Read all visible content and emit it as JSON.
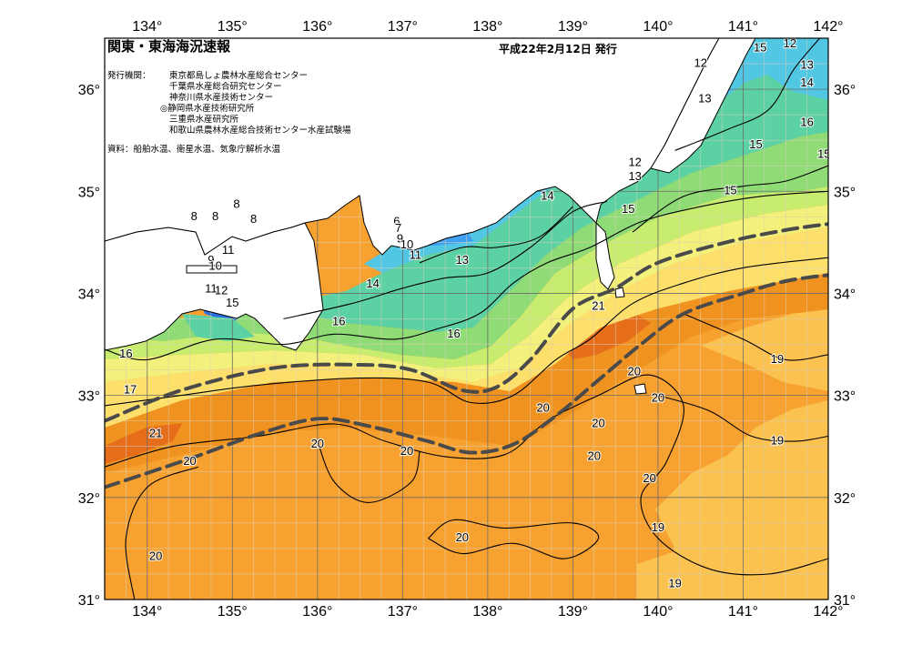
{
  "header": {
    "title": "関東・東海海況速報",
    "issue_date": "平成22年2月12日 発行",
    "agencies_label": "発行機関：",
    "agencies": [
      "東京都島しょ農林水産総合センター",
      "千葉県水産総合研究センター",
      "神奈川県水産技術センター",
      "◎静岡県水産技術研究所",
      "三重県水産研究所",
      "和歌山県農林水産総合技術センター水産試験場"
    ],
    "source": "資料：船舶水温、衛星水温、気象庁解析水温"
  },
  "axes": {
    "lon_min": 133.5,
    "lon_max": 142,
    "lat_min": 31,
    "lat_max": 36.5,
    "lon_ticks": [
      {
        "value": 134,
        "label": "134°"
      },
      {
        "value": 135,
        "label": "135°"
      },
      {
        "value": 136,
        "label": "136°"
      },
      {
        "value": 137,
        "label": "137°"
      },
      {
        "value": 138,
        "label": "138°"
      },
      {
        "value": 139,
        "label": "139°"
      },
      {
        "value": 140,
        "label": "140°"
      },
      {
        "value": 141,
        "label": "141°"
      },
      {
        "value": 142,
        "label": "142°"
      }
    ],
    "lat_ticks": [
      {
        "value": 36,
        "label": "36°"
      },
      {
        "value": 35,
        "label": "35°"
      },
      {
        "value": 34,
        "label": "34°"
      },
      {
        "value": 33,
        "label": "33°"
      },
      {
        "value": 32,
        "label": "32°"
      },
      {
        "value": 31,
        "label": "31°"
      }
    ],
    "grid": true,
    "minor_grid_step_deg": 0.25
  },
  "colors": {
    "sst_19_20": "#f7a230",
    "sst_20_21": "#f0921f",
    "sst_21_plus": "#e66d1a",
    "sst_18_19": "#fbc24f",
    "sst_17_18": "#fde06c",
    "sst_16_17": "#f3f07c",
    "sst_15_16": "#c8ec6e",
    "sst_14_15": "#8fdc76",
    "sst_13_14": "#5cd1a3",
    "sst_12_13": "#52c7e3",
    "sst_11_12": "#3f9ff0",
    "sst_10_11": "#2a70e2",
    "sst_9_10": "#1e4fd3",
    "sst_8_9": "#3565c8",
    "land": "#ffffff",
    "kuroshio_line": "#4a4a4a",
    "grid_line": "#d9d0b8"
  },
  "kuroshio": {
    "path1": [
      [
        133.5,
        32.75
      ],
      [
        134.4,
        33.05
      ],
      [
        135.5,
        33.27
      ],
      [
        136.5,
        33.3
      ],
      [
        137.1,
        33.25
      ],
      [
        137.7,
        33.05
      ],
      [
        138.1,
        33.08
      ],
      [
        138.5,
        33.35
      ],
      [
        139.0,
        33.85
      ],
      [
        139.5,
        34.05
      ],
      [
        140.0,
        34.3
      ],
      [
        140.8,
        34.5
      ],
      [
        141.5,
        34.62
      ],
      [
        142.0,
        34.68
      ]
    ],
    "path2": [
      [
        133.5,
        32.1
      ],
      [
        134.5,
        32.38
      ],
      [
        135.3,
        32.62
      ],
      [
        136.0,
        32.77
      ],
      [
        136.6,
        32.7
      ],
      [
        137.3,
        32.55
      ],
      [
        137.8,
        32.44
      ],
      [
        138.3,
        32.52
      ],
      [
        138.8,
        32.8
      ],
      [
        139.3,
        33.15
      ],
      [
        139.8,
        33.5
      ],
      [
        140.3,
        33.8
      ],
      [
        141.0,
        34.0
      ],
      [
        141.5,
        34.12
      ],
      [
        142.0,
        34.18
      ]
    ]
  },
  "contours": [
    {
      "label": "21",
      "points": [
        [
          133.5,
          32.9
        ],
        [
          134.4,
          33.0
        ],
        [
          135.3,
          33.1
        ],
        [
          136.5,
          33.17
        ],
        [
          137.3,
          33.13
        ],
        [
          137.8,
          32.93
        ],
        [
          138.3,
          33.0
        ],
        [
          138.8,
          33.35
        ],
        [
          139.2,
          33.55
        ],
        [
          139.7,
          33.9
        ],
        [
          140.3,
          34.1
        ],
        [
          141.0,
          34.25
        ],
        [
          142.0,
          34.35
        ]
      ]
    },
    {
      "label": "20",
      "points": [
        [
          133.5,
          32.3
        ],
        [
          134.3,
          32.5
        ],
        [
          135.3,
          32.6
        ],
        [
          136.2,
          32.72
        ],
        [
          136.8,
          32.55
        ],
        [
          137.5,
          32.4
        ],
        [
          138.2,
          32.42
        ],
        [
          138.7,
          32.75
        ],
        [
          139.3,
          33.0
        ],
        [
          139.9,
          33.2
        ],
        [
          140.3,
          32.9
        ],
        [
          140.1,
          32.35
        ],
        [
          139.8,
          32.0
        ],
        [
          140.0,
          31.6
        ],
        [
          140.6,
          31.3
        ],
        [
          141.3,
          31.25
        ],
        [
          142.0,
          31.4
        ]
      ]
    },
    {
      "label": "20",
      "points": [
        [
          133.85,
          31.0
        ],
        [
          133.75,
          31.6
        ],
        [
          134.0,
          32.1
        ],
        [
          134.6,
          32.3
        ]
      ]
    },
    {
      "label": "20",
      "points": [
        [
          137.3,
          31.6
        ],
        [
          137.7,
          31.45
        ],
        [
          138.3,
          31.55
        ],
        [
          138.9,
          31.4
        ],
        [
          139.3,
          31.6
        ],
        [
          139.0,
          31.75
        ],
        [
          138.2,
          31.7
        ],
        [
          137.6,
          31.78
        ],
        [
          137.3,
          31.6
        ]
      ]
    },
    {
      "label": "20",
      "points": [
        [
          136.0,
          32.55
        ],
        [
          136.2,
          32.15
        ],
        [
          136.6,
          31.95
        ],
        [
          137.1,
          32.15
        ],
        [
          137.2,
          32.45
        ]
      ]
    },
    {
      "label": "19",
      "points": [
        [
          140.0,
          33.0
        ],
        [
          140.6,
          32.85
        ],
        [
          141.1,
          32.6
        ],
        [
          141.6,
          32.55
        ],
        [
          142.0,
          32.6
        ]
      ]
    },
    {
      "label": "19",
      "points": [
        [
          140.3,
          33.8
        ],
        [
          141.0,
          33.55
        ],
        [
          141.5,
          33.35
        ],
        [
          142.0,
          33.4
        ]
      ]
    },
    {
      "label": "16",
      "points": [
        [
          133.5,
          33.45
        ],
        [
          134.0,
          33.35
        ],
        [
          134.8,
          33.55
        ],
        [
          135.6,
          33.5
        ],
        [
          136.2,
          33.6
        ],
        [
          136.9,
          33.55
        ],
        [
          137.4,
          33.65
        ],
        [
          137.9,
          33.8
        ],
        [
          138.3,
          34.1
        ],
        [
          138.7,
          34.3
        ],
        [
          139.2,
          34.45
        ],
        [
          139.8,
          34.7
        ],
        [
          140.5,
          34.85
        ],
        [
          141.2,
          34.95
        ],
        [
          142.0,
          35.0
        ]
      ]
    },
    {
      "label": "15",
      "points": [
        [
          139.7,
          34.6
        ],
        [
          140.3,
          34.95
        ],
        [
          141.0,
          35.05
        ],
        [
          141.5,
          35.1
        ],
        [
          142.0,
          35.25
        ]
      ]
    },
    {
      "label": "14",
      "points": [
        [
          135.6,
          33.75
        ],
        [
          136.4,
          33.9
        ],
        [
          137.0,
          34.05
        ],
        [
          137.5,
          34.15
        ],
        [
          138.0,
          34.2
        ],
        [
          138.5,
          34.45
        ],
        [
          139.0,
          34.8
        ],
        [
          139.4,
          34.9
        ]
      ]
    },
    {
      "label": "13",
      "points": [
        [
          137.2,
          34.3
        ],
        [
          137.7,
          34.45
        ],
        [
          138.1,
          34.45
        ],
        [
          138.6,
          34.55
        ],
        [
          139.0,
          34.85
        ]
      ]
    },
    {
      "label": "15",
      "points": [
        [
          140.2,
          35.4
        ],
        [
          140.8,
          35.6
        ],
        [
          141.3,
          35.8
        ],
        [
          141.6,
          36.2
        ],
        [
          141.9,
          36.5
        ]
      ]
    }
  ],
  "labels": [
    {
      "text": "8",
      "lon": 134.55,
      "lat": 34.75
    },
    {
      "text": "8",
      "lon": 134.8,
      "lat": 34.75
    },
    {
      "text": "8",
      "lon": 135.05,
      "lat": 34.87
    },
    {
      "text": "8",
      "lon": 135.25,
      "lat": 34.72
    },
    {
      "text": "11",
      "lon": 134.95,
      "lat": 34.42
    },
    {
      "text": "9",
      "lon": 134.75,
      "lat": 34.32
    },
    {
      "text": "10",
      "lon": 134.8,
      "lat": 34.26
    },
    {
      "text": "11",
      "lon": 134.75,
      "lat": 34.04
    },
    {
      "text": "12",
      "lon": 134.87,
      "lat": 34.02
    },
    {
      "text": "15",
      "lon": 135.0,
      "lat": 33.9
    },
    {
      "text": "6",
      "lon": 136.93,
      "lat": 34.7
    },
    {
      "text": "7",
      "lon": 136.95,
      "lat": 34.63
    },
    {
      "text": "9",
      "lon": 136.97,
      "lat": 34.53
    },
    {
      "text": "10",
      "lon": 137.05,
      "lat": 34.47
    },
    {
      "text": "11",
      "lon": 137.15,
      "lat": 34.37
    },
    {
      "text": "13",
      "lon": 137.7,
      "lat": 34.32
    },
    {
      "text": "14",
      "lon": 136.65,
      "lat": 34.09
    },
    {
      "text": "16",
      "lon": 136.25,
      "lat": 33.72
    },
    {
      "text": "16",
      "lon": 137.6,
      "lat": 33.6
    },
    {
      "text": "14",
      "lon": 138.7,
      "lat": 34.95
    },
    {
      "text": "15",
      "lon": 139.65,
      "lat": 34.82
    },
    {
      "text": "12",
      "lon": 139.73,
      "lat": 35.28
    },
    {
      "text": "13",
      "lon": 139.73,
      "lat": 35.14
    },
    {
      "text": "12",
      "lon": 140.5,
      "lat": 36.25
    },
    {
      "text": "13",
      "lon": 140.55,
      "lat": 35.9
    },
    {
      "text": "12",
      "lon": 141.55,
      "lat": 36.44
    },
    {
      "text": "15",
      "lon": 141.2,
      "lat": 36.4
    },
    {
      "text": "13",
      "lon": 141.75,
      "lat": 36.23
    },
    {
      "text": "14",
      "lon": 141.75,
      "lat": 36.06
    },
    {
      "text": "16",
      "lon": 141.75,
      "lat": 35.67
    },
    {
      "text": "15",
      "lon": 141.15,
      "lat": 35.45
    },
    {
      "text": "15",
      "lon": 141.95,
      "lat": 35.36
    },
    {
      "text": "15",
      "lon": 140.85,
      "lat": 35.0
    },
    {
      "text": "21",
      "lon": 139.3,
      "lat": 33.87
    },
    {
      "text": "20",
      "lon": 139.72,
      "lat": 33.23
    },
    {
      "text": "20",
      "lon": 140.0,
      "lat": 32.97
    },
    {
      "text": "20",
      "lon": 138.65,
      "lat": 32.87
    },
    {
      "text": "20",
      "lon": 139.3,
      "lat": 32.72
    },
    {
      "text": "20",
      "lon": 136.0,
      "lat": 32.52
    },
    {
      "text": "20",
      "lon": 137.05,
      "lat": 32.45
    },
    {
      "text": "20",
      "lon": 139.25,
      "lat": 32.4
    },
    {
      "text": "20",
      "lon": 139.9,
      "lat": 32.18
    },
    {
      "text": "20",
      "lon": 134.5,
      "lat": 32.35
    },
    {
      "text": "20",
      "lon": 137.7,
      "lat": 31.6
    },
    {
      "text": "20",
      "lon": 134.1,
      "lat": 31.42
    },
    {
      "text": "21",
      "lon": 134.1,
      "lat": 32.62
    },
    {
      "text": "19",
      "lon": 141.4,
      "lat": 33.35
    },
    {
      "text": "19",
      "lon": 141.4,
      "lat": 32.55
    },
    {
      "text": "19",
      "lon": 140.0,
      "lat": 31.7
    },
    {
      "text": "19",
      "lon": 140.2,
      "lat": 31.15
    },
    {
      "text": "16",
      "lon": 133.75,
      "lat": 33.4
    },
    {
      "text": "17",
      "lon": 133.8,
      "lat": 33.05
    }
  ]
}
